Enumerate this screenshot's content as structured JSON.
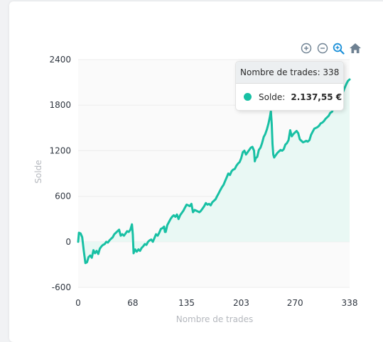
{
  "toolbar": {
    "zoom_in": "zoom-in-icon",
    "zoom_out": "zoom-out-icon",
    "zoom_select": "zoom-search-icon",
    "reset": "home-icon",
    "color": "#6e8192"
  },
  "tooltip": {
    "title_label": "Nombre de trades",
    "title_value": "338",
    "series_label": "Solde:",
    "series_value": "2.137,55 €"
  },
  "chart_data": {
    "type": "area",
    "title": "",
    "xlabel": "Nombre de trades",
    "ylabel": "Solde",
    "xlim": [
      0,
      338
    ],
    "ylim": [
      -600,
      2400
    ],
    "x_ticks": [
      "0",
      "68",
      "135",
      "203",
      "270",
      "338"
    ],
    "y_ticks": [
      "2400",
      "1800",
      "1200",
      "600",
      "0",
      "-600"
    ],
    "grid": true,
    "line_color": "#18c0a4",
    "fill_color": "#e9f8f4",
    "series": [
      {
        "name": "Solde",
        "points": [
          [
            0,
            0
          ],
          [
            1,
            120
          ],
          [
            3,
            110
          ],
          [
            5,
            60
          ],
          [
            7,
            -120
          ],
          [
            9,
            -280
          ],
          [
            11,
            -270
          ],
          [
            13,
            -200
          ],
          [
            15,
            -180
          ],
          [
            17,
            -210
          ],
          [
            19,
            -110
          ],
          [
            21,
            -150
          ],
          [
            23,
            -120
          ],
          [
            25,
            -160
          ],
          [
            27,
            -90
          ],
          [
            29,
            -60
          ],
          [
            31,
            -40
          ],
          [
            33,
            -30
          ],
          [
            35,
            0
          ],
          [
            37,
            -10
          ],
          [
            39,
            20
          ],
          [
            41,
            40
          ],
          [
            43,
            60
          ],
          [
            45,
            100
          ],
          [
            47,
            120
          ],
          [
            49,
            140
          ],
          [
            51,
            160
          ],
          [
            53,
            80
          ],
          [
            55,
            100
          ],
          [
            57,
            80
          ],
          [
            59,
            110
          ],
          [
            61,
            140
          ],
          [
            63,
            130
          ],
          [
            65,
            160
          ],
          [
            67,
            230
          ],
          [
            68,
            100
          ],
          [
            69,
            -150
          ],
          [
            71,
            -100
          ],
          [
            73,
            -130
          ],
          [
            75,
            -100
          ],
          [
            77,
            -120
          ],
          [
            79,
            -80
          ],
          [
            81,
            -60
          ],
          [
            83,
            -30
          ],
          [
            85,
            -40
          ],
          [
            87,
            0
          ],
          [
            89,
            20
          ],
          [
            91,
            30
          ],
          [
            93,
            0
          ],
          [
            95,
            50
          ],
          [
            97,
            100
          ],
          [
            99,
            80
          ],
          [
            101,
            120
          ],
          [
            103,
            170
          ],
          [
            105,
            180
          ],
          [
            107,
            200
          ],
          [
            108,
            130
          ],
          [
            109,
            130
          ],
          [
            111,
            220
          ],
          [
            113,
            260
          ],
          [
            115,
            300
          ],
          [
            117,
            330
          ],
          [
            119,
            350
          ],
          [
            121,
            330
          ],
          [
            123,
            360
          ],
          [
            125,
            300
          ],
          [
            127,
            350
          ],
          [
            129,
            380
          ],
          [
            131,
            410
          ],
          [
            133,
            450
          ],
          [
            135,
            490
          ],
          [
            137,
            480
          ],
          [
            139,
            470
          ],
          [
            141,
            500
          ],
          [
            143,
            390
          ],
          [
            145,
            420
          ],
          [
            147,
            410
          ],
          [
            149,
            400
          ],
          [
            151,
            390
          ],
          [
            153,
            410
          ],
          [
            155,
            440
          ],
          [
            157,
            470
          ],
          [
            159,
            510
          ],
          [
            161,
            490
          ],
          [
            163,
            500
          ],
          [
            165,
            480
          ],
          [
            167,
            520
          ],
          [
            169,
            540
          ],
          [
            171,
            560
          ],
          [
            173,
            600
          ],
          [
            175,
            640
          ],
          [
            177,
            680
          ],
          [
            179,
            720
          ],
          [
            181,
            750
          ],
          [
            183,
            800
          ],
          [
            185,
            850
          ],
          [
            187,
            900
          ],
          [
            189,
            880
          ],
          [
            191,
            930
          ],
          [
            193,
            950
          ],
          [
            195,
            960
          ],
          [
            197,
            1000
          ],
          [
            199,
            1030
          ],
          [
            201,
            1050
          ],
          [
            203,
            1100
          ],
          [
            205,
            1180
          ],
          [
            207,
            1200
          ],
          [
            209,
            1150
          ],
          [
            211,
            1180
          ],
          [
            213,
            1210
          ],
          [
            215,
            1240
          ],
          [
            217,
            1250
          ],
          [
            219,
            1200
          ],
          [
            220,
            1060
          ],
          [
            221,
            1100
          ],
          [
            223,
            1120
          ],
          [
            225,
            1210
          ],
          [
            227,
            1240
          ],
          [
            229,
            1300
          ],
          [
            231,
            1380
          ],
          [
            233,
            1420
          ],
          [
            235,
            1480
          ],
          [
            237,
            1560
          ],
          [
            239,
            1660
          ],
          [
            240,
            1720
          ],
          [
            241,
            1560
          ],
          [
            242,
            1290
          ],
          [
            243,
            1150
          ],
          [
            244,
            1110
          ],
          [
            246,
            1140
          ],
          [
            248,
            1170
          ],
          [
            250,
            1190
          ],
          [
            252,
            1210
          ],
          [
            254,
            1200
          ],
          [
            256,
            1220
          ],
          [
            258,
            1280
          ],
          [
            260,
            1300
          ],
          [
            262,
            1340
          ],
          [
            264,
            1470
          ],
          [
            266,
            1390
          ],
          [
            268,
            1420
          ],
          [
            270,
            1440
          ],
          [
            272,
            1460
          ],
          [
            274,
            1430
          ],
          [
            276,
            1350
          ],
          [
            278,
            1330
          ],
          [
            280,
            1310
          ],
          [
            282,
            1320
          ],
          [
            284,
            1330
          ],
          [
            286,
            1320
          ],
          [
            288,
            1340
          ],
          [
            290,
            1410
          ],
          [
            292,
            1450
          ],
          [
            294,
            1490
          ],
          [
            296,
            1500
          ],
          [
            298,
            1510
          ],
          [
            300,
            1530
          ],
          [
            302,
            1560
          ],
          [
            304,
            1570
          ],
          [
            306,
            1590
          ],
          [
            308,
            1620
          ],
          [
            310,
            1640
          ],
          [
            312,
            1660
          ],
          [
            314,
            1700
          ],
          [
            316,
            1710
          ],
          [
            318,
            1760
          ],
          [
            320,
            1800
          ],
          [
            322,
            1850
          ],
          [
            324,
            1900
          ],
          [
            326,
            1910
          ],
          [
            328,
            1940
          ],
          [
            330,
            1980
          ],
          [
            332,
            2030
          ],
          [
            334,
            2080
          ],
          [
            336,
            2120
          ],
          [
            338,
            2138
          ]
        ]
      }
    ]
  }
}
